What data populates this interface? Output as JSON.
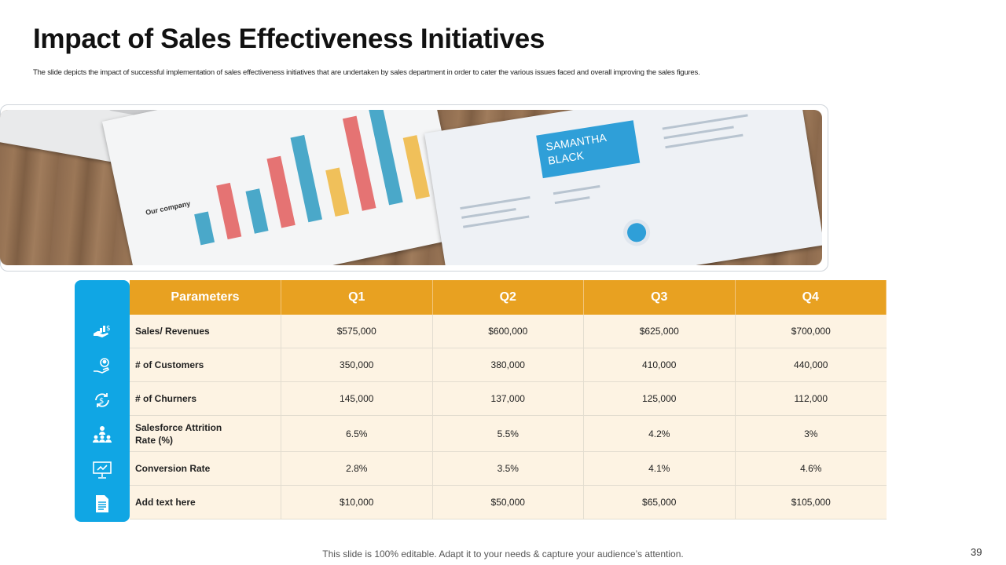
{
  "slide": {
    "title": "Impact of Sales Effectiveness Initiatives",
    "subtitle": "The slide depicts the impact of successful implementation of sales effectiveness initiatives that are undertaken by sales department in order to cater the various issues faced and overall improving the sales figures.",
    "footer": "This slide is 100% editable. Adapt it to your needs & capture your audience’s attention.",
    "page_number": "39"
  },
  "photo": {
    "chart_title": "Our company",
    "resume_name_line1": "SAMANTHA",
    "resume_name_line2": "BLACK"
  },
  "table": {
    "headers": [
      "Parameters",
      "Q1",
      "Q2",
      "Q3",
      "Q4"
    ],
    "rows": [
      {
        "icon": "money-hand-icon",
        "label": "Sales/ Revenues",
        "values": [
          "$575,000",
          "$600,000",
          "$625,000",
          "$700,000"
        ]
      },
      {
        "icon": "customer-hand-icon",
        "label": "# of Customers",
        "values": [
          "350,000",
          "380,000",
          "410,000",
          "440,000"
        ]
      },
      {
        "icon": "dollar-cycle-icon",
        "label": "# of Churners",
        "values": [
          "145,000",
          "137,000",
          "125,000",
          "112,000"
        ]
      },
      {
        "icon": "team-hierarchy-icon",
        "label": "Salesforce Attrition Rate  (%)",
        "values": [
          "6.5%",
          "5.5%",
          "4.2%",
          "3%"
        ]
      },
      {
        "icon": "presentation-board-icon",
        "label": "Conversion Rate",
        "values": [
          "2.8%",
          "3.5%",
          "4.1%",
          "4.6%"
        ]
      },
      {
        "icon": "document-icon",
        "label": "Add text here",
        "values": [
          "$10,000",
          "$50,000",
          "$65,000",
          "$105,000"
        ]
      }
    ]
  },
  "colors": {
    "header_orange": "#e8a121",
    "rail_blue": "#10a6e4",
    "row_cream": "#fdf3e3"
  }
}
